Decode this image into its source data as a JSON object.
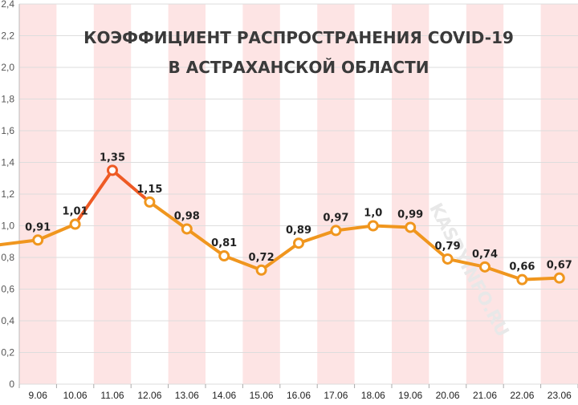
{
  "chart_data": {
    "type": "line",
    "title_line1": "КОЭФФИЦИЕНТ РАСПРОСТРАНЕНИЯ COVID-19",
    "title_line2": "В АСТРАХАНСКОЙ ОБЛАСТИ",
    "watermark": "KASPYINFO.RU",
    "categories": [
      "9.06",
      "10.06",
      "11.06",
      "12.06",
      "13.06",
      "14.06",
      "15.06",
      "16.06",
      "17.06",
      "18.06",
      "19.06",
      "20.06",
      "21.06",
      "22.06",
      "23.06"
    ],
    "values": [
      0.91,
      1.01,
      1.35,
      1.15,
      0.98,
      0.81,
      0.72,
      0.89,
      0.97,
      1.0,
      0.99,
      0.79,
      0.74,
      0.66,
      0.67
    ],
    "data_labels": [
      "0,91",
      "1,01",
      "1,35",
      "1,15",
      "0,98",
      "0,81",
      "0,72",
      "0,89",
      "0,97",
      "1,0",
      "0,99",
      "0,79",
      "0,74",
      "0,66",
      "0,67"
    ],
    "line_start_value": 0.88,
    "highlight_index": 2,
    "ylim": [
      0,
      2.4
    ],
    "yticks": [
      0,
      0.2,
      0.4,
      0.6,
      0.8,
      1.0,
      1.2,
      1.4,
      1.6,
      1.8,
      2.0,
      2.2,
      2.4
    ],
    "ytick_labels": [
      "0",
      "0,2",
      "0,4",
      "0,6",
      "0,8",
      "1,0",
      "1,2",
      "1,4",
      "1,6",
      "1,8",
      "2,0",
      "2,2",
      "2,4"
    ],
    "grid": true,
    "colors": {
      "line": "#f0961e",
      "line_highlight": "#ee5a24",
      "band": "#fde4e4",
      "grid": "#dddddd",
      "marker_fill": "#ffffff"
    }
  }
}
